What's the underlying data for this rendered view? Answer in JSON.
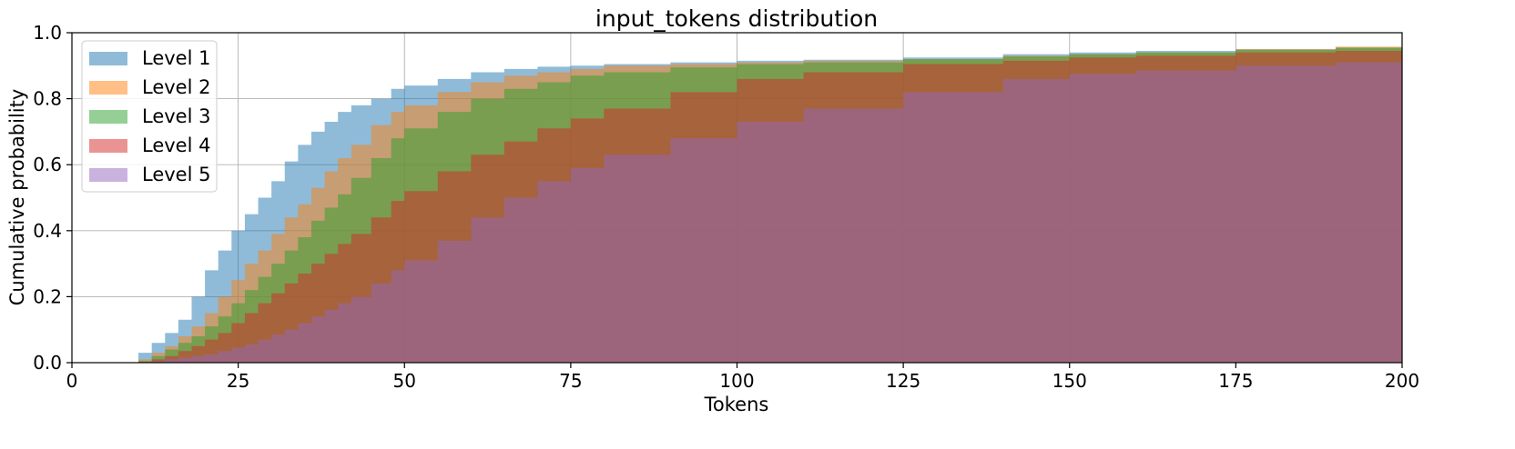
{
  "chart_data": {
    "type": "area",
    "title": "input_tokens distribution",
    "xlabel": "Tokens",
    "ylabel": "Cumulative probability",
    "xlim": [
      0,
      200
    ],
    "ylim": [
      0,
      1.0
    ],
    "x_ticks": [
      0,
      25,
      50,
      75,
      100,
      125,
      150,
      175,
      200
    ],
    "y_ticks": [
      0.0,
      0.2,
      0.4,
      0.6,
      0.8,
      1.0
    ],
    "x_tick_labels": [
      "0",
      "25",
      "50",
      "75",
      "100",
      "125",
      "150",
      "175",
      "200"
    ],
    "y_tick_labels": [
      "0.0",
      "0.2",
      "0.4",
      "0.6",
      "0.8",
      "1.0"
    ],
    "grid": true,
    "legend_position": "top-left",
    "cumulative_step_histogram": true,
    "opacity": 0.5,
    "x": [
      8,
      10,
      12,
      14,
      16,
      18,
      20,
      22,
      24,
      26,
      28,
      30,
      32,
      34,
      36,
      38,
      40,
      42,
      45,
      48,
      50,
      55,
      60,
      65,
      70,
      75,
      80,
      90,
      100,
      110,
      125,
      140,
      150,
      160,
      175,
      190,
      200
    ],
    "series": [
      {
        "name": "Level 1",
        "color": "#1f77b4",
        "values": [
          0.0,
          0.03,
          0.06,
          0.09,
          0.13,
          0.2,
          0.28,
          0.34,
          0.4,
          0.45,
          0.5,
          0.55,
          0.61,
          0.66,
          0.7,
          0.73,
          0.76,
          0.78,
          0.8,
          0.83,
          0.84,
          0.86,
          0.88,
          0.89,
          0.897,
          0.9,
          0.905,
          0.91,
          0.915,
          0.918,
          0.925,
          0.935,
          0.94,
          0.945,
          0.95,
          0.955,
          0.96
        ]
      },
      {
        "name": "Level 2",
        "color": "#ff7f0e",
        "values": [
          0.0,
          0.01,
          0.03,
          0.05,
          0.08,
          0.11,
          0.15,
          0.2,
          0.25,
          0.3,
          0.34,
          0.39,
          0.44,
          0.48,
          0.53,
          0.58,
          0.62,
          0.66,
          0.72,
          0.76,
          0.78,
          0.82,
          0.85,
          0.87,
          0.88,
          0.89,
          0.9,
          0.905,
          0.91,
          0.915,
          0.92,
          0.93,
          0.935,
          0.94,
          0.95,
          0.958,
          0.962
        ]
      },
      {
        "name": "Level 3",
        "color": "#2ca02c",
        "values": [
          0.0,
          0.005,
          0.02,
          0.04,
          0.06,
          0.08,
          0.11,
          0.14,
          0.18,
          0.22,
          0.26,
          0.3,
          0.34,
          0.38,
          0.43,
          0.47,
          0.51,
          0.56,
          0.62,
          0.68,
          0.71,
          0.76,
          0.8,
          0.83,
          0.85,
          0.87,
          0.88,
          0.895,
          0.905,
          0.91,
          0.92,
          0.928,
          0.935,
          0.94,
          0.948,
          0.955,
          0.96
        ]
      },
      {
        "name": "Level 4",
        "color": "#d62728",
        "values": [
          0.0,
          0.002,
          0.01,
          0.02,
          0.035,
          0.05,
          0.07,
          0.09,
          0.12,
          0.15,
          0.18,
          0.21,
          0.24,
          0.27,
          0.3,
          0.33,
          0.36,
          0.39,
          0.44,
          0.49,
          0.52,
          0.58,
          0.63,
          0.67,
          0.71,
          0.74,
          0.77,
          0.82,
          0.86,
          0.88,
          0.905,
          0.915,
          0.925,
          0.93,
          0.94,
          0.945,
          0.95
        ]
      },
      {
        "name": "Level 5",
        "color": "#9467bd",
        "values": [
          0.0,
          0.0,
          0.005,
          0.01,
          0.015,
          0.02,
          0.025,
          0.035,
          0.045,
          0.055,
          0.07,
          0.085,
          0.1,
          0.12,
          0.14,
          0.16,
          0.18,
          0.2,
          0.24,
          0.28,
          0.31,
          0.37,
          0.44,
          0.5,
          0.55,
          0.59,
          0.63,
          0.68,
          0.73,
          0.77,
          0.82,
          0.86,
          0.875,
          0.885,
          0.9,
          0.91,
          0.915
        ]
      }
    ]
  }
}
